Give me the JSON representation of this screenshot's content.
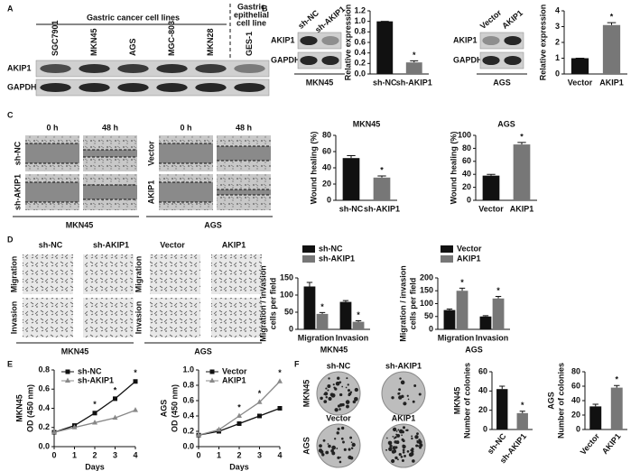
{
  "panels": [
    "A",
    "B",
    "C",
    "D",
    "E",
    "F"
  ],
  "blot_a": {
    "group1": "Gastric cancer cell lines",
    "group2": [
      "Gastric",
      "epithelial",
      "cell line"
    ],
    "lanes": [
      "SGC7901",
      "MKN45",
      "AGS",
      "MGC-803",
      "MKN28",
      "GES-1"
    ],
    "rows": [
      "AKIP1",
      "GAPDH"
    ]
  },
  "blot_b1": {
    "lanes": [
      "sh-NC",
      "sh-AKIP1"
    ],
    "rows": [
      "AKIP1",
      "GAPDH"
    ],
    "cell_line": "MKN45"
  },
  "blot_b2": {
    "lanes": [
      "Vector",
      "AKIP1"
    ],
    "rows": [
      "AKIP1",
      "GAPDH"
    ],
    "cell_line": "AGS"
  },
  "wound": {
    "times": [
      "0 h",
      "48 h"
    ],
    "groups": [
      {
        "rows": [
          "sh-NC",
          "sh-AKIP1"
        ],
        "cell_line": "MKN45"
      },
      {
        "rows": [
          "Vector",
          "AKIP1"
        ],
        "cell_line": "AGS"
      }
    ]
  },
  "transwell": {
    "columns": [
      "sh-NC",
      "sh-AKIP1",
      "Vector",
      "AKIP1"
    ],
    "rows": [
      "Migration",
      "Invasion"
    ],
    "cell_lines": [
      "MKN45",
      "AGS"
    ]
  },
  "colony": {
    "labels": [
      [
        "sh-NC",
        "sh-AKIP1"
      ],
      [
        "Vector",
        "AKIP1"
      ]
    ],
    "rows": [
      "MKN45",
      "AGS"
    ]
  },
  "chart_data": [
    {
      "type": "bar",
      "ylabel": "Relative expression",
      "categories": [
        "sh-NC",
        "sh-AKIP1"
      ],
      "values": [
        1.0,
        0.22
      ],
      "errors": [
        0,
        0.03
      ],
      "colors": [
        "#111111",
        "#777777"
      ],
      "significance": [
        null,
        "*"
      ],
      "ylim": [
        0,
        1.2
      ],
      "yticks": [
        {
          "value": 0,
          "label": "0.0"
        },
        {
          "value": 0.2,
          "label": "0.2"
        },
        {
          "value": 0.4,
          "label": "0.4"
        },
        {
          "value": 0.6,
          "label": "0.6"
        },
        {
          "value": 0.8,
          "label": "0.8"
        },
        {
          "value": 1,
          "label": "1.0"
        },
        {
          "value": 1.2,
          "label": "1.2"
        }
      ]
    },
    {
      "type": "bar",
      "ylabel": "Relative expression",
      "categories": [
        "Vector",
        "AKIP1"
      ],
      "values": [
        1.0,
        3.1
      ],
      "errors": [
        0,
        0.15
      ],
      "colors": [
        "#111111",
        "#777777"
      ],
      "significance": [
        null,
        "*"
      ],
      "ylim": [
        0,
        4
      ],
      "yticks": [
        0,
        1,
        2,
        3,
        4
      ]
    },
    {
      "type": "bar",
      "title": "MKN45",
      "ylabel": "Wound healing (%)",
      "categories": [
        "sh-NC",
        "sh-AKIP1"
      ],
      "values": [
        52,
        28
      ],
      "errors": [
        3,
        2
      ],
      "colors": [
        "#111111",
        "#777777"
      ],
      "significance": [
        null,
        "*"
      ],
      "ylim": [
        0,
        80
      ],
      "yticks": [
        0,
        20,
        40,
        60,
        80
      ]
    },
    {
      "type": "bar",
      "title": "AGS",
      "ylabel": "Wound healing (%)",
      "categories": [
        "Vector",
        "AKIP1"
      ],
      "values": [
        38,
        86
      ],
      "errors": [
        2,
        3
      ],
      "colors": [
        "#111111",
        "#777777"
      ],
      "significance": [
        null,
        "*"
      ],
      "ylim": [
        0,
        100
      ],
      "yticks": [
        0,
        20,
        40,
        60,
        80,
        100
      ]
    },
    {
      "type": "bar",
      "ylabel": [
        "Migration / invasion",
        "cells per field"
      ],
      "xlabel": "MKN45",
      "categories": [
        "Migration",
        "Invasion"
      ],
      "series": [
        {
          "name": "sh-NC",
          "color": "#111111",
          "values": [
            125,
            80
          ],
          "errors": [
            12,
            4
          ],
          "significance": [
            null,
            null
          ]
        },
        {
          "name": "sh-AKIP1",
          "color": "#777777",
          "values": [
            45,
            22
          ],
          "errors": [
            4,
            3
          ],
          "significance": [
            "*",
            "*"
          ]
        }
      ],
      "ylim": [
        0,
        150
      ],
      "yticks": [
        0,
        50,
        100,
        150
      ]
    },
    {
      "type": "bar",
      "ylabel": [
        "Migration / invasion",
        "cells per field"
      ],
      "xlabel": "AGS",
      "categories": [
        "Migration",
        "Invasion"
      ],
      "series": [
        {
          "name": "Vector",
          "color": "#111111",
          "values": [
            75,
            50
          ],
          "errors": [
            4,
            3
          ],
          "significance": [
            null,
            null
          ]
        },
        {
          "name": "AKIP1",
          "color": "#777777",
          "values": [
            150,
            120
          ],
          "errors": [
            10,
            8
          ],
          "significance": [
            "*",
            "*"
          ]
        }
      ],
      "ylim": [
        0,
        200
      ],
      "yticks": [
        0,
        50,
        100,
        150,
        200
      ]
    },
    {
      "type": "line",
      "ylabel": [
        "MKN45",
        "OD (450 nm)"
      ],
      "xlabel": "Days",
      "x": [
        0,
        1,
        2,
        3,
        4
      ],
      "series": [
        {
          "name": "sh-NC",
          "color": "#111111",
          "marker": "square",
          "values": [
            0.15,
            0.22,
            0.35,
            0.5,
            0.68
          ],
          "significance": [
            null,
            null,
            "*",
            "*",
            "*"
          ]
        },
        {
          "name": "sh-AKIP1",
          "color": "#888888",
          "marker": "triangle",
          "values": [
            0.15,
            0.2,
            0.25,
            0.3,
            0.38
          ],
          "significance": [
            null,
            null,
            null,
            null,
            null
          ]
        }
      ],
      "xlim": [
        0,
        4
      ],
      "xticks": [
        0,
        1,
        2,
        3,
        4
      ],
      "ylim": [
        0,
        0.8
      ],
      "yticks": [
        {
          "value": 0,
          "label": "0.0"
        },
        {
          "value": 0.2,
          "label": "0.2"
        },
        {
          "value": 0.4,
          "label": "0.4"
        },
        {
          "value": 0.6,
          "label": "0.6"
        },
        {
          "value": 0.8,
          "label": "0.8"
        }
      ]
    },
    {
      "type": "line",
      "ylabel": [
        "AGS",
        "OD (450 nm)"
      ],
      "xlabel": "Days",
      "x": [
        0,
        1,
        2,
        3,
        4
      ],
      "series": [
        {
          "name": "Vector",
          "color": "#111111",
          "marker": "square",
          "values": [
            0.15,
            0.2,
            0.3,
            0.4,
            0.5
          ],
          "significance": [
            null,
            null,
            null,
            null,
            null
          ]
        },
        {
          "name": "AKIP1",
          "color": "#888888",
          "marker": "triangle",
          "values": [
            0.15,
            0.22,
            0.4,
            0.58,
            0.85
          ],
          "significance": [
            null,
            null,
            "*",
            "*",
            "*"
          ]
        }
      ],
      "xlim": [
        0,
        4
      ],
      "xticks": [
        0,
        1,
        2,
        3,
        4
      ],
      "ylim": [
        0,
        1
      ],
      "yticks": [
        {
          "value": 0,
          "label": "0.0"
        },
        {
          "value": 0.2,
          "label": "0.2"
        },
        {
          "value": 0.4,
          "label": "0.4"
        },
        {
          "value": 0.6,
          "label": "0.6"
        },
        {
          "value": 0.8,
          "label": "0.8"
        },
        {
          "value": 1,
          "label": "1.0"
        }
      ]
    },
    {
      "type": "bar",
      "ylabel": [
        "MKN45",
        "Number of colonies"
      ],
      "rotated_labels": true,
      "categories": [
        "sh-NC",
        "sh-AKIP1"
      ],
      "values": [
        42,
        17
      ],
      "errors": [
        3,
        2
      ],
      "colors": [
        "#111111",
        "#777777"
      ],
      "significance": [
        null,
        "*"
      ],
      "ylim": [
        0,
        60
      ],
      "yticks": [
        0,
        20,
        40,
        60
      ]
    },
    {
      "type": "bar",
      "ylabel": [
        "AGS",
        "Number of colonies"
      ],
      "rotated_labels": true,
      "categories": [
        "Vector",
        "AKIP1"
      ],
      "values": [
        32,
        58
      ],
      "errors": [
        3,
        3
      ],
      "colors": [
        "#111111",
        "#777777"
      ],
      "significance": [
        null,
        "*"
      ],
      "ylim": [
        0,
        80
      ],
      "yticks": [
        0,
        20,
        40,
        60,
        80
      ]
    }
  ]
}
